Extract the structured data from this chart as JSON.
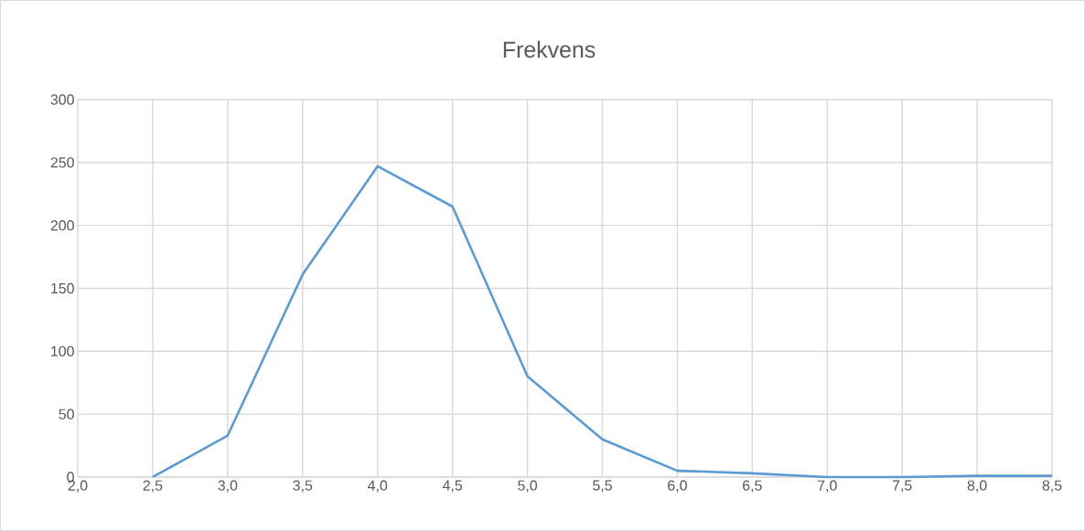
{
  "chart_data": {
    "type": "line",
    "title": "Frekvens",
    "categories": [
      "2,0",
      "2,5",
      "3,0",
      "3,5",
      "4,0",
      "4,5",
      "5,0",
      "5,5",
      "6,0",
      "6,5",
      "7,0",
      "7,5",
      "8,0",
      "8,5"
    ],
    "series": [
      {
        "color": "#5b9bd5",
        "values": [
          null,
          0,
          33,
          161,
          247,
          215,
          80,
          30,
          5,
          3,
          0,
          0,
          1,
          1
        ]
      }
    ],
    "ylim": [
      0,
      300
    ],
    "yticks": [
      0,
      50,
      100,
      150,
      200,
      250,
      300
    ],
    "grid": true,
    "legend": false,
    "marker": "none",
    "line_style": "solid"
  }
}
